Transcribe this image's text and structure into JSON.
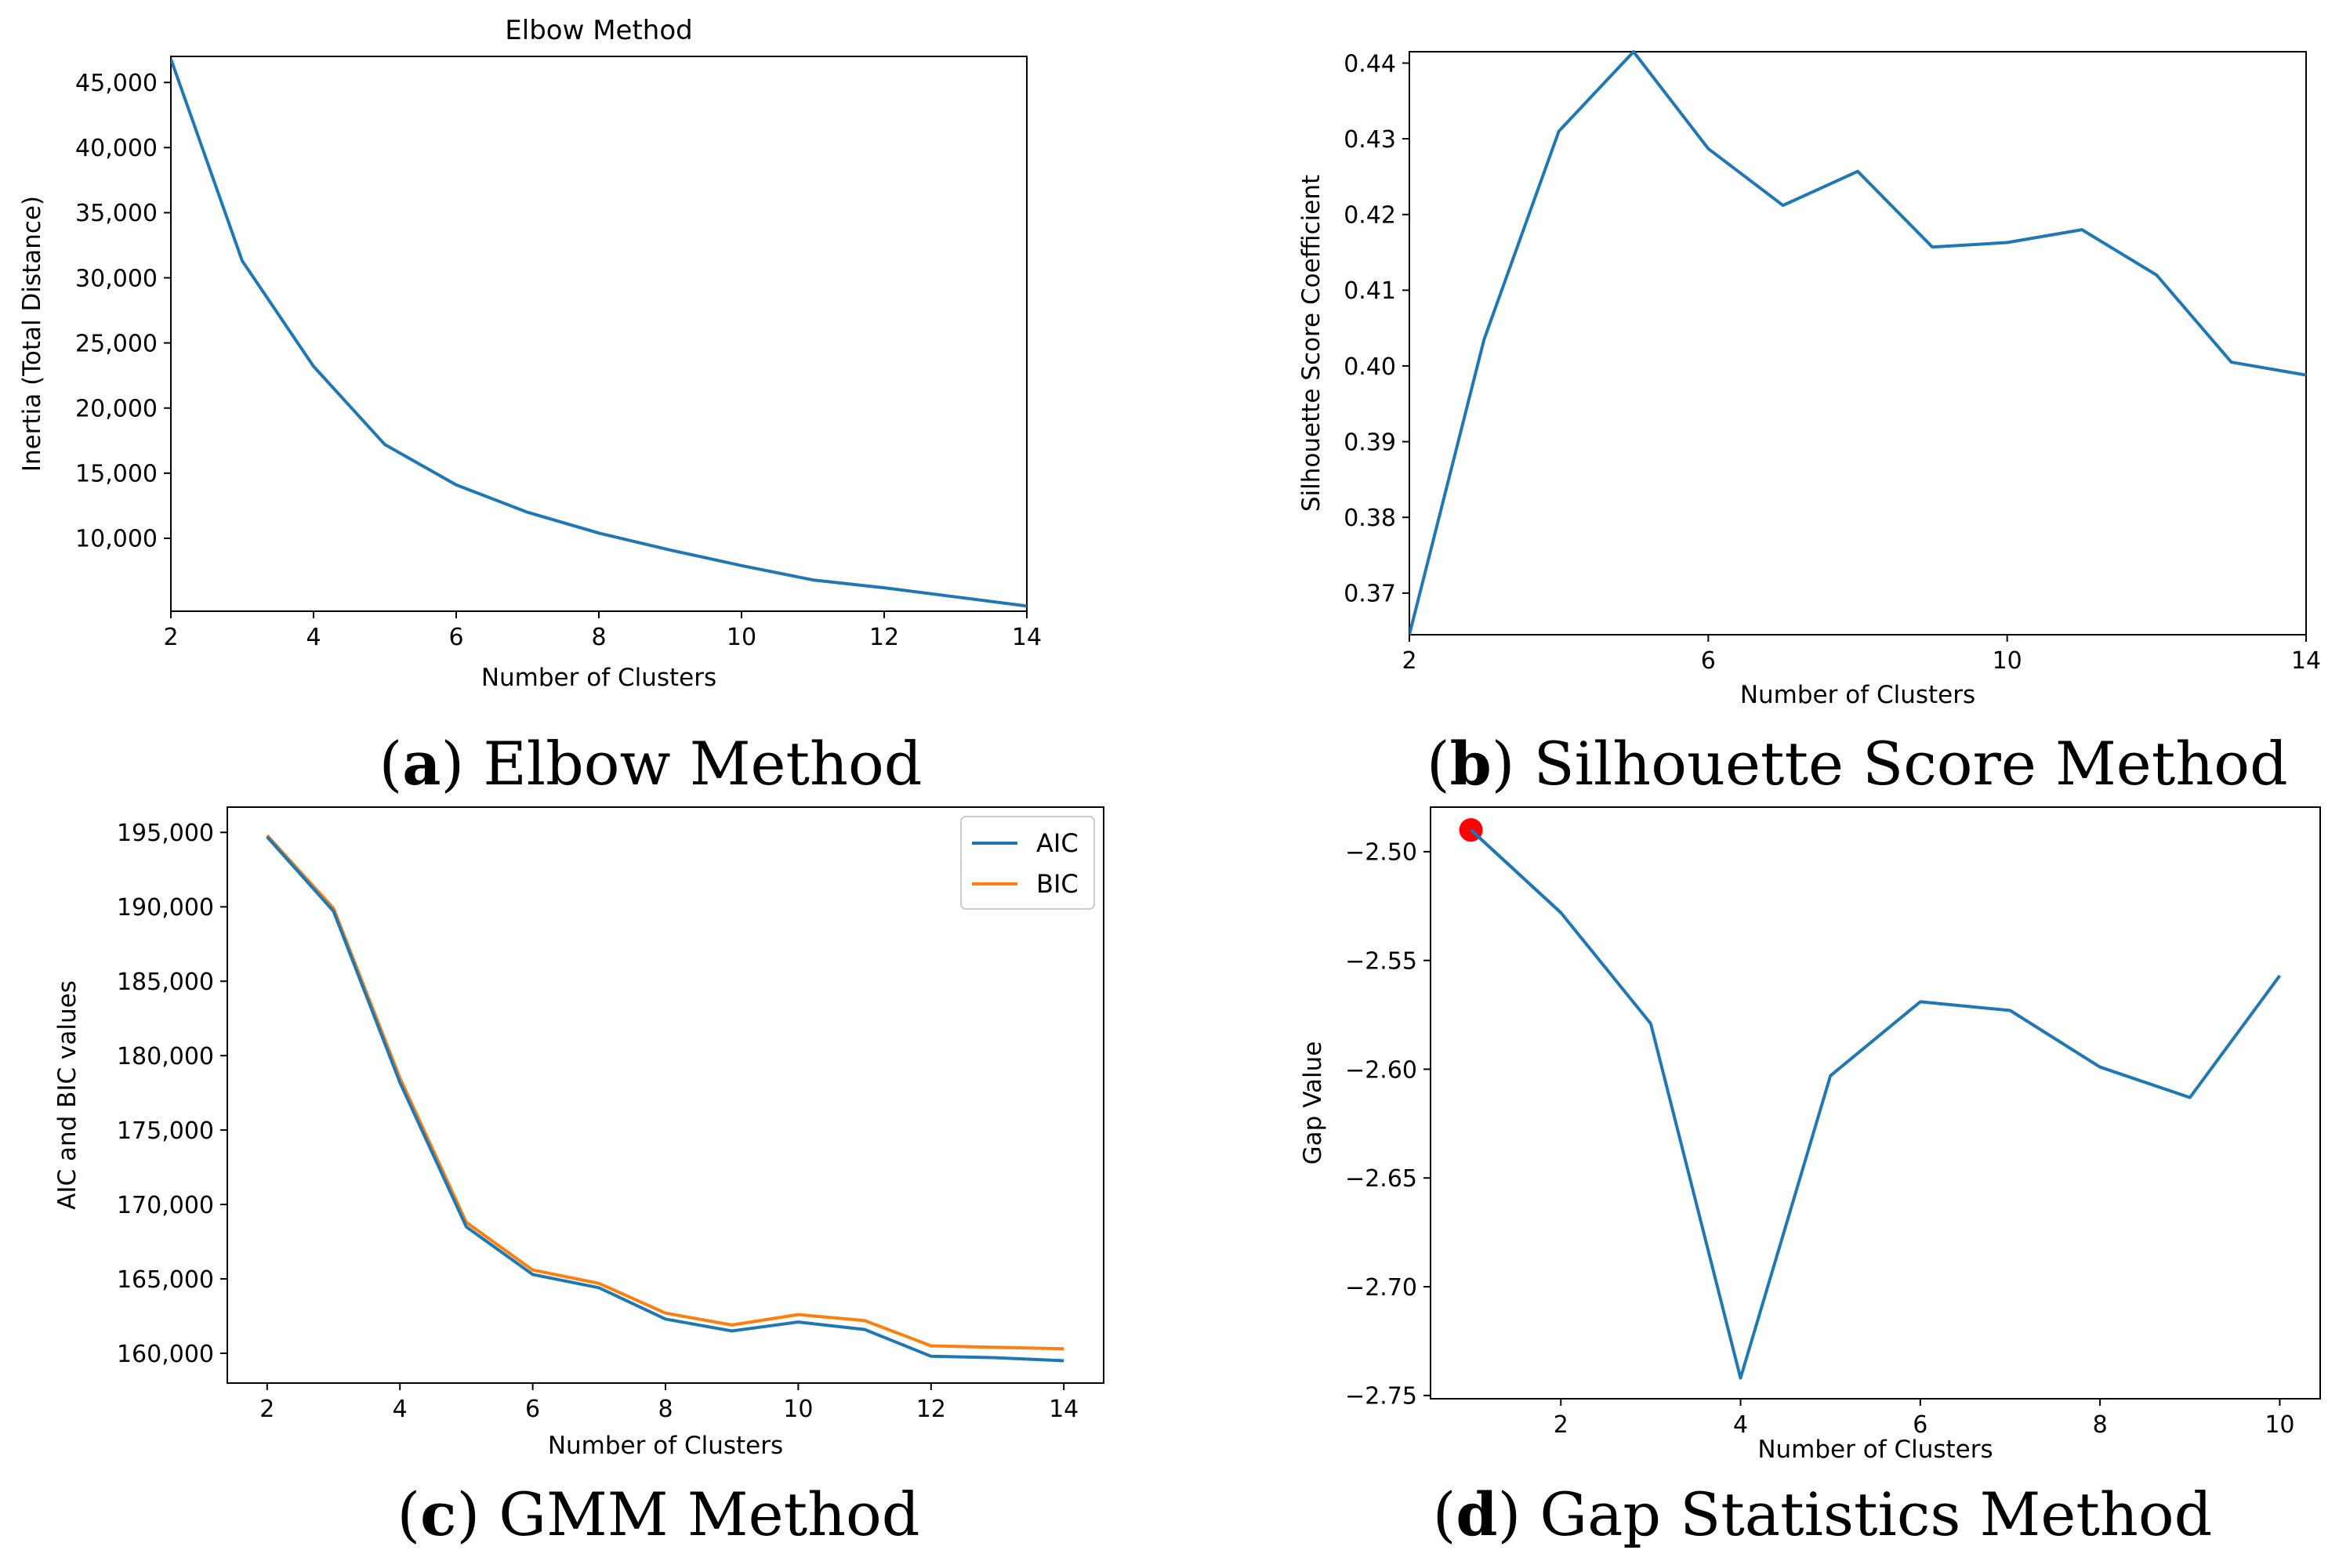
{
  "chart_data": [
    {
      "type": "line",
      "title": "Elbow Method",
      "xlabel": "Number of Clusters",
      "ylabel": "Inertia (Total Distance)",
      "xlim": [
        2,
        14
      ],
      "ylim": [
        4400,
        47000
      ],
      "xticks": [
        2,
        4,
        6,
        8,
        10,
        12,
        14
      ],
      "yticks": [
        10000,
        15000,
        20000,
        25000,
        30000,
        35000,
        40000,
        45000
      ],
      "ytick_labels": [
        "10,000",
        "15,000",
        "20,000",
        "25,000",
        "30,000",
        "35,000",
        "40,000",
        "45,000"
      ],
      "series": [
        {
          "name": "Inertia",
          "color": "#1f77b4",
          "x": [
            2,
            3,
            4,
            5,
            6,
            7,
            8,
            9,
            10,
            11,
            12,
            13,
            14
          ],
          "values": [
            46800,
            31300,
            23200,
            17200,
            14100,
            12000,
            10400,
            9100,
            7900,
            6800,
            6200,
            5500,
            4800
          ]
        }
      ],
      "caption_label": "a",
      "caption_text": "Elbow Method"
    },
    {
      "type": "line",
      "title": "",
      "xlabel": "Number of Clusters",
      "ylabel": "Silhouette Score Coefficient",
      "xlim": [
        2,
        14
      ],
      "ylim": [
        0.3645,
        0.4415
      ],
      "xticks": [
        2,
        6,
        10,
        14
      ],
      "yticks": [
        0.37,
        0.38,
        0.39,
        0.4,
        0.41,
        0.42,
        0.43,
        0.44
      ],
      "ytick_labels": [
        "0.37",
        "0.38",
        "0.39",
        "0.40",
        "0.41",
        "0.42",
        "0.43",
        "0.44"
      ],
      "series": [
        {
          "name": "Silhouette",
          "color": "#1f77b4",
          "x": [
            2,
            3,
            4,
            5,
            6,
            7,
            8,
            9,
            10,
            11,
            12,
            13,
            14
          ],
          "values": [
            0.3645,
            0.4035,
            0.431,
            0.4415,
            0.4287,
            0.4212,
            0.4257,
            0.4157,
            0.4163,
            0.418,
            0.412,
            0.4005,
            0.3988
          ]
        }
      ],
      "caption_label": "b",
      "caption_text": "Silhouette Score Method"
    },
    {
      "type": "line",
      "title": "",
      "xlabel": "Number of Clusters",
      "ylabel": "AIC and BIC values",
      "xlim": [
        1.4,
        14.6
      ],
      "ylim": [
        158000,
        196700
      ],
      "xticks": [
        2,
        4,
        6,
        8,
        10,
        12,
        14
      ],
      "yticks": [
        160000,
        165000,
        170000,
        175000,
        180000,
        185000,
        190000,
        195000
      ],
      "ytick_labels": [
        "160,000",
        "165,000",
        "170,000",
        "175,000",
        "180,000",
        "185,000",
        "190,000",
        "195,000"
      ],
      "legend": "top-right",
      "series": [
        {
          "name": "AIC",
          "color": "#1f77b4",
          "x": [
            2,
            3,
            4,
            5,
            6,
            7,
            8,
            9,
            10,
            11,
            12,
            13,
            14
          ],
          "values": [
            194700,
            189700,
            178200,
            168500,
            165300,
            164400,
            162300,
            161500,
            162100,
            161600,
            159800,
            159700,
            159500
          ]
        },
        {
          "name": "BIC",
          "color": "#ff7f0e",
          "x": [
            2,
            3,
            4,
            5,
            6,
            7,
            8,
            9,
            10,
            11,
            12,
            13,
            14
          ],
          "values": [
            194800,
            189900,
            178500,
            168800,
            165600,
            164700,
            162700,
            161900,
            162600,
            162200,
            160500,
            160400,
            160300
          ]
        }
      ],
      "caption_label": "c",
      "caption_text": "GMM Method"
    },
    {
      "type": "line",
      "title": "",
      "xlabel": "Number of Clusters",
      "ylabel": "Gap Value",
      "xlim": [
        0.55,
        10.45
      ],
      "ylim": [
        -2.7515,
        -2.4795
      ],
      "xticks": [
        2,
        4,
        6,
        8,
        10
      ],
      "yticks": [
        -2.75,
        -2.7,
        -2.65,
        -2.6,
        -2.55,
        -2.5
      ],
      "ytick_labels": [
        "−2.75",
        "−2.70",
        "−2.65",
        "−2.60",
        "−2.55",
        "−2.50"
      ],
      "highlight_point": {
        "x": 1,
        "y": -2.49,
        "color": "#ff0000"
      },
      "series": [
        {
          "name": "Gap",
          "color": "#1f77b4",
          "x": [
            1,
            2,
            3,
            4,
            5,
            6,
            7,
            8,
            9,
            10
          ],
          "values": [
            -2.49,
            -2.528,
            -2.579,
            -2.742,
            -2.603,
            -2.569,
            -2.573,
            -2.599,
            -2.613,
            -2.557
          ]
        }
      ],
      "caption_label": "d",
      "caption_text": "Gap Statistics Method"
    }
  ]
}
